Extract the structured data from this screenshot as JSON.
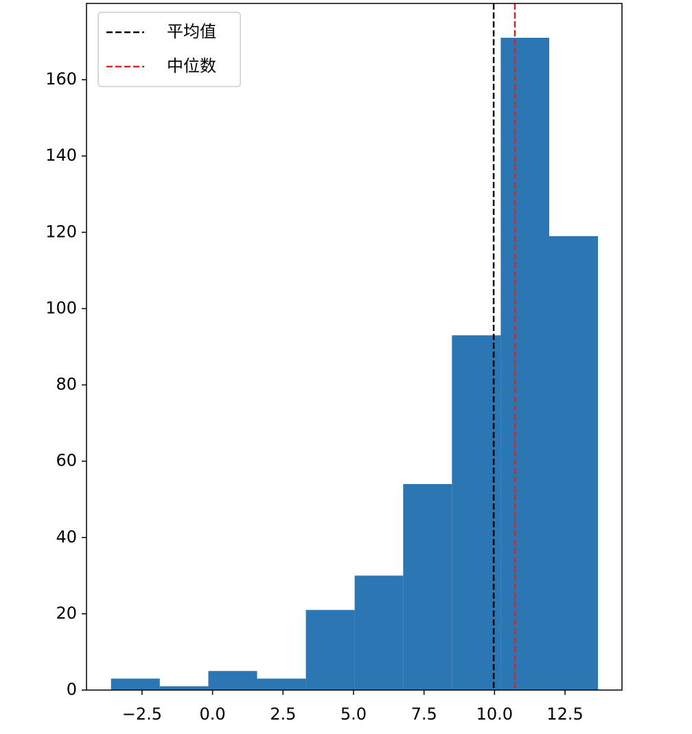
{
  "chart_data": {
    "type": "histogram",
    "bins": [
      -3.6,
      -1.87,
      -0.15,
      1.58,
      3.31,
      5.04,
      6.76,
      8.49,
      10.22,
      11.94,
      13.67
    ],
    "values": [
      3,
      1,
      5,
      3,
      21,
      30,
      54,
      93,
      171,
      119
    ],
    "color": "#2a77b4",
    "xlim": [
      -4.47,
      14.52
    ],
    "ylim": [
      0,
      180
    ],
    "xticks": [
      {
        "value": -2.5,
        "label": "−2.5"
      },
      {
        "value": 0,
        "label": "0.0"
      },
      {
        "value": 2.5,
        "label": "2.5"
      },
      {
        "value": 5,
        "label": "5.0"
      },
      {
        "value": 7.5,
        "label": "7.5"
      },
      {
        "value": 10,
        "label": "10.0"
      },
      {
        "value": 12.5,
        "label": "12.5"
      }
    ],
    "yticks": [
      0,
      20,
      40,
      60,
      80,
      100,
      120,
      140,
      160
    ],
    "vlines": [
      {
        "name": "平均值",
        "color": "#000000",
        "value": 9.97
      },
      {
        "name": "中位数",
        "color": "#d62728",
        "value": 10.72
      }
    ],
    "legend": "upper left"
  }
}
